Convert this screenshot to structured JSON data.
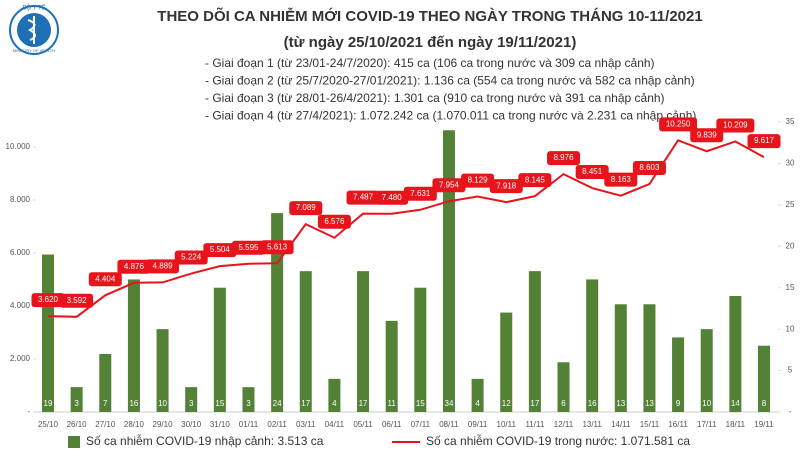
{
  "logo": {
    "top": "BỘ Y TẾ",
    "bottom": "MINISTRY OF HEALTH"
  },
  "chart_data": {
    "type": "bar-line",
    "title": "THEO DÕI CA NHIỄM MỚI COVID-19 THEO NGÀY TRONG THÁNG 10-11/2021",
    "subtitle": "(từ ngày 25/10/2021 đến ngày 19/11/2021)",
    "notes": [
      "- Giai đoạn 1 (từ 23/01-24/7/2020): 415 ca (106 ca trong nước và 309 ca nhập cảnh)",
      "- Giai đoạn 2 (từ 25/7/2020-27/01/2021): 1.136 ca (554 ca trong nước và 582 ca nhập cảnh)",
      "- Giai đoạn 3 (từ 28/01-26/4/2021): 1.301 ca (910 ca trong nước và 391 ca nhập cảnh)",
      "- Giai đoạn 4 (từ 27/4/2021): 1.072.242 ca (1.070.011 ca trong nước và 2.231 ca nhập cảnh)"
    ],
    "categories": [
      "25/10",
      "26/10",
      "27/10",
      "28/10",
      "29/10",
      "30/10",
      "31/10",
      "01/11",
      "02/11",
      "03/11",
      "04/11",
      "05/11",
      "06/11",
      "07/11",
      "08/11",
      "09/11",
      "10/11",
      "11/11",
      "12/11",
      "13/11",
      "14/11",
      "15/11",
      "16/11",
      "17/11",
      "18/11",
      "19/11"
    ],
    "series": [
      {
        "name": "Số ca nhiễm COVID-19 nhập cảnh: 3.513 ca",
        "type": "bar",
        "axis": "y2",
        "color": "#538135",
        "values": [
          19,
          3,
          7,
          16,
          10,
          3,
          15,
          3,
          24,
          17,
          4,
          17,
          11,
          15,
          34,
          4,
          12,
          17,
          6,
          16,
          13,
          13,
          9,
          10,
          14,
          8
        ]
      },
      {
        "name": "Số ca nhiễm COVID-19 trong nước: 1.071.581 ca",
        "type": "line",
        "axis": "y",
        "color": "#e8141b",
        "values": [
          3620,
          3592,
          4404,
          4876,
          4889,
          5224,
          5504,
          5595,
          5613,
          7089,
          6576,
          7487,
          7480,
          7631,
          7954,
          8129,
          7918,
          8145,
          8976,
          8451,
          8163,
          8603,
          10250,
          9839,
          10209,
          9617
        ],
        "value_labels": [
          "3.620",
          "3.592",
          "4.404",
          "4.876",
          "4.889",
          "5.224",
          "5.504",
          "5.595",
          "5.613",
          "7.089",
          "6.576",
          "7.487",
          "7.480",
          "7.631",
          "7.954",
          "8.129",
          "7.918",
          "8.145",
          "8.976",
          "8.451",
          "8.163",
          "8.603",
          "10.250",
          "9.839",
          "10.209",
          "9.617"
        ]
      }
    ],
    "ylim": [
      0,
      10943
    ],
    "yticks": [
      {
        "value": 0,
        "label": "-"
      },
      {
        "value": 2000,
        "label": "2.000"
      },
      {
        "value": 4000,
        "label": "4.000"
      },
      {
        "value": 6000,
        "label": "6.000"
      },
      {
        "value": 8000,
        "label": "8.000"
      },
      {
        "value": 10000,
        "label": "10.000"
      }
    ],
    "y2lim": [
      0,
      35
    ],
    "y2ticks": [
      {
        "value": 0,
        "label": "-"
      },
      5,
      10,
      15,
      20,
      25,
      30,
      35
    ],
    "grid": false
  }
}
